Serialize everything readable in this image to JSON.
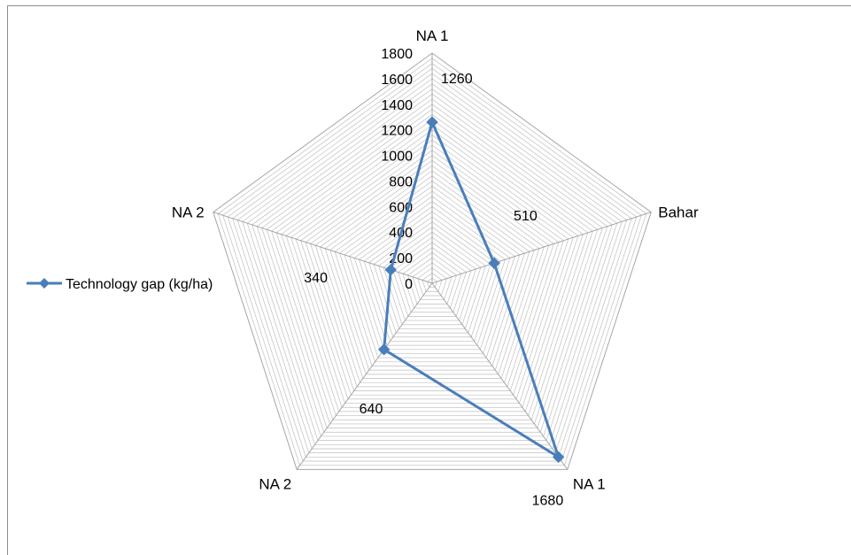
{
  "chart_data": {
    "type": "radar",
    "categories": [
      "NA 1",
      "Bahar",
      "NA 1",
      "NA 2",
      "NA 2"
    ],
    "series": [
      {
        "name": "Technology gap (kg/ha)",
        "values": [
          1260,
          510,
          1680,
          640,
          340
        ],
        "data_labels": [
          "1260",
          "510",
          "1680",
          "640",
          "340"
        ]
      }
    ],
    "r_range": [
      0,
      1800
    ],
    "ticks": [
      "0",
      "200",
      "400",
      "600",
      "800",
      "1000",
      "1200",
      "1400",
      "1600",
      "1800"
    ],
    "tick_values": [
      0,
      200,
      400,
      600,
      800,
      1000,
      1200,
      1400,
      1600,
      1800
    ],
    "grid": true,
    "legend_position": "left",
    "colors": {
      "series": "#4a7ebb",
      "grid": "#bfbfbf",
      "frame": "#8c8c8c"
    }
  }
}
